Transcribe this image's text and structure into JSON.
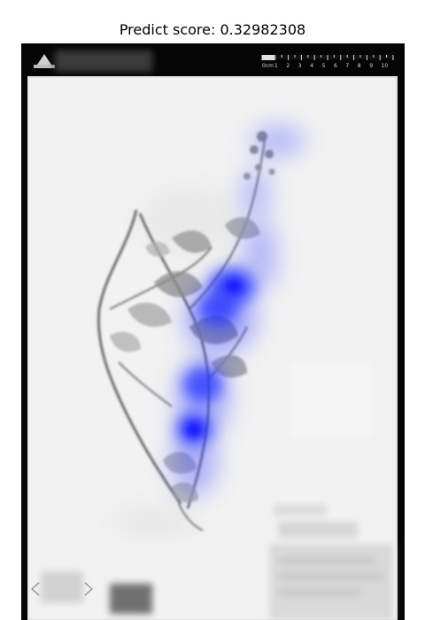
{
  "figure": {
    "title": "Predict score: 0.32982308"
  },
  "scale_bar": {
    "unit": "0cm",
    "ticks": [
      "1",
      "2",
      "3",
      "4",
      "5",
      "6",
      "7",
      "8",
      "9",
      "10"
    ]
  },
  "colors": {
    "background": "#ffffff",
    "frame": "#050505",
    "sheet": "#f2f2f2",
    "saliency": "#1f2bff"
  },
  "overlay": {
    "type": "saliency heatmap",
    "colormap": "blue"
  }
}
